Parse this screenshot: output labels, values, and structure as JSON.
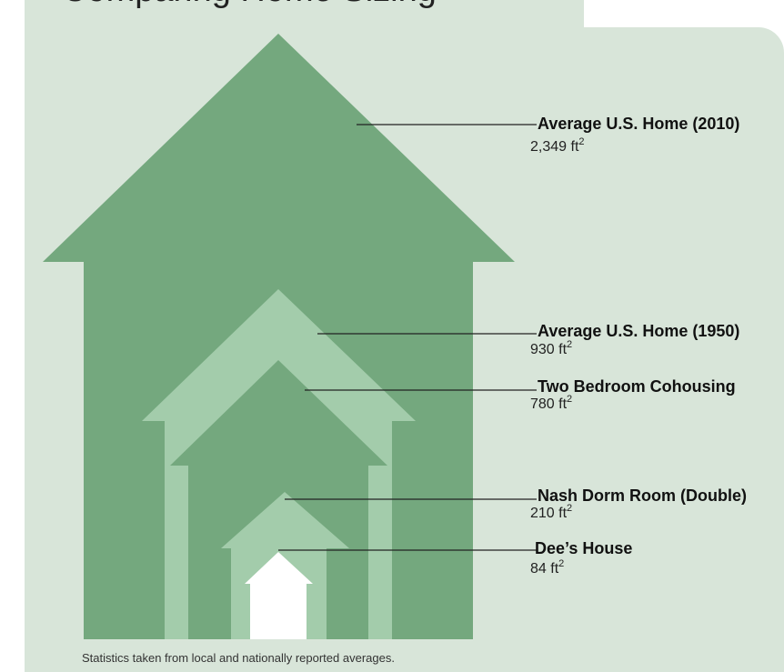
{
  "header": {
    "title_fragment": "Comparing Home Sizing"
  },
  "footnote": "Statistics taken from local and nationally reported averages.",
  "colors": {
    "background": "#d8e5d9",
    "dark_green": "#74a87e",
    "light_green": "#a3ccab",
    "white": "#ffffff",
    "leader_line": "#222222"
  },
  "chart_data": {
    "type": "pictograph",
    "unit": "ft²",
    "items": [
      {
        "label": "Average U.S. Home (2010)",
        "value": 2349,
        "value_text": "2,349",
        "unit": "ft",
        "sup": "2"
      },
      {
        "label": "Average U.S. Home (1950)",
        "value": 930,
        "value_text": "930",
        "unit": "ft",
        "sup": "2"
      },
      {
        "label": "Two Bedroom Cohousing",
        "value": 780,
        "value_text": "780",
        "unit": "ft",
        "sup": "2"
      },
      {
        "label": "Nash Dorm Room (Double)",
        "value": 210,
        "value_text": "210",
        "unit": "ft",
        "sup": "2"
      },
      {
        "label": "Dee’s House",
        "value": 84,
        "value_text": "84",
        "unit": "ft",
        "sup": "2"
      }
    ]
  }
}
